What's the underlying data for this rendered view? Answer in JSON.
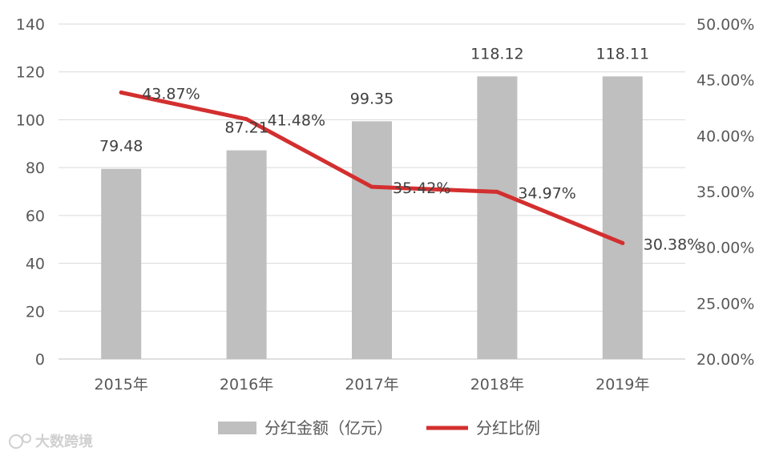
{
  "chart_data": {
    "type": "bar+line",
    "categories": [
      "2015年",
      "2016年",
      "2017年",
      "2018年",
      "2019年"
    ],
    "series": [
      {
        "name": "分红金额（亿元）",
        "kind": "bar",
        "axis": "left",
        "color": "#bfbfbf",
        "values": [
          79.48,
          87.21,
          99.35,
          118.12,
          118.11
        ],
        "labels": [
          "79.48",
          "87.21",
          "99.35",
          "118.12",
          "118.11"
        ]
      },
      {
        "name": "分红比例",
        "kind": "line",
        "axis": "right",
        "color": "#d32f2f",
        "values": [
          43.87,
          41.48,
          35.42,
          34.97,
          30.38
        ],
        "labels": [
          "43.87%",
          "41.48%",
          "35.42%",
          "34.97%",
          "30.38%"
        ]
      }
    ],
    "y_left": {
      "min": 0,
      "max": 140,
      "step": 20,
      "ticks": [
        "0",
        "20",
        "40",
        "60",
        "80",
        "100",
        "120",
        "140"
      ]
    },
    "y_right": {
      "min": 20,
      "max": 50,
      "step": 5,
      "ticks": [
        "20.00%",
        "25.00%",
        "30.00%",
        "35.00%",
        "40.00%",
        "45.00%",
        "50.00%"
      ]
    },
    "grid": true,
    "legend_position": "bottom",
    "title": "",
    "xlabel": "",
    "ylabel": ""
  },
  "watermark": {
    "text": "大数跨境",
    "icon": "brand-logo-icon"
  }
}
